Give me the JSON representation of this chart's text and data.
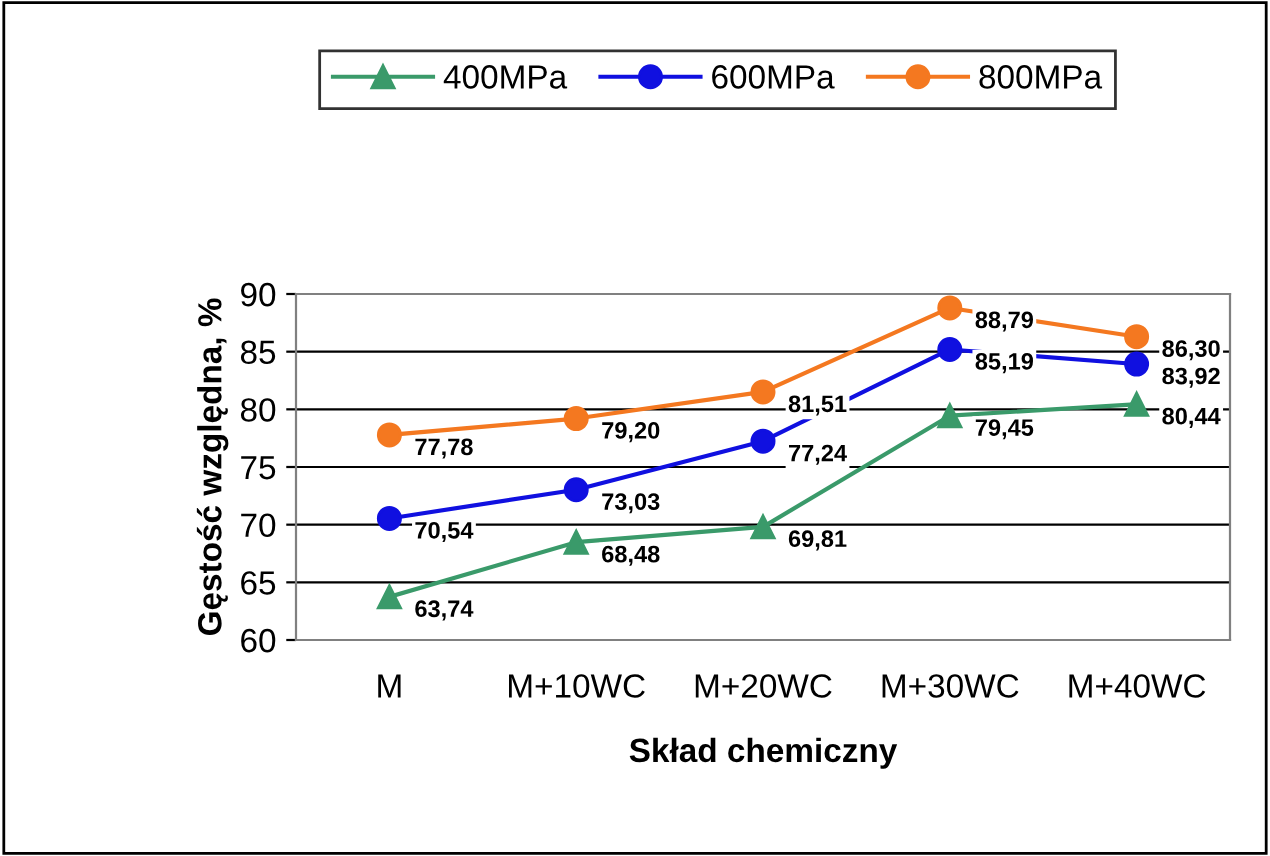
{
  "chart_data": {
    "type": "line",
    "xlabel": "Skład chemiczny",
    "ylabel": "Gęstość względna, %",
    "categories": [
      "M",
      "M+10WC",
      "M+20WC",
      "M+30WC",
      "M+40WC"
    ],
    "series": [
      {
        "name": "400MPa",
        "color": "#3a9a6a",
        "marker": "triangle",
        "values": [
          63.74,
          68.48,
          69.81,
          79.45,
          80.44
        ],
        "value_labels": [
          "63,74",
          "68,48",
          "69,81",
          "79,45",
          "80,44"
        ]
      },
      {
        "name": "600MPa",
        "color": "#1010e0",
        "marker": "circle",
        "values": [
          70.54,
          73.03,
          77.24,
          85.19,
          83.92
        ],
        "value_labels": [
          "70,54",
          "73,03",
          "77,24",
          "85,19",
          "83,92"
        ]
      },
      {
        "name": "800MPa",
        "color": "#f47820",
        "marker": "circle",
        "values": [
          77.78,
          79.2,
          81.51,
          88.79,
          86.3
        ],
        "value_labels": [
          "77,78",
          "79,20",
          "81,51",
          "88,79",
          "86,30"
        ]
      }
    ],
    "ylim": [
      60,
      90
    ],
    "yticks": [
      60,
      65,
      70,
      75,
      80,
      85,
      90
    ],
    "grid": "y",
    "legend": "top",
    "line_style": "solid"
  }
}
